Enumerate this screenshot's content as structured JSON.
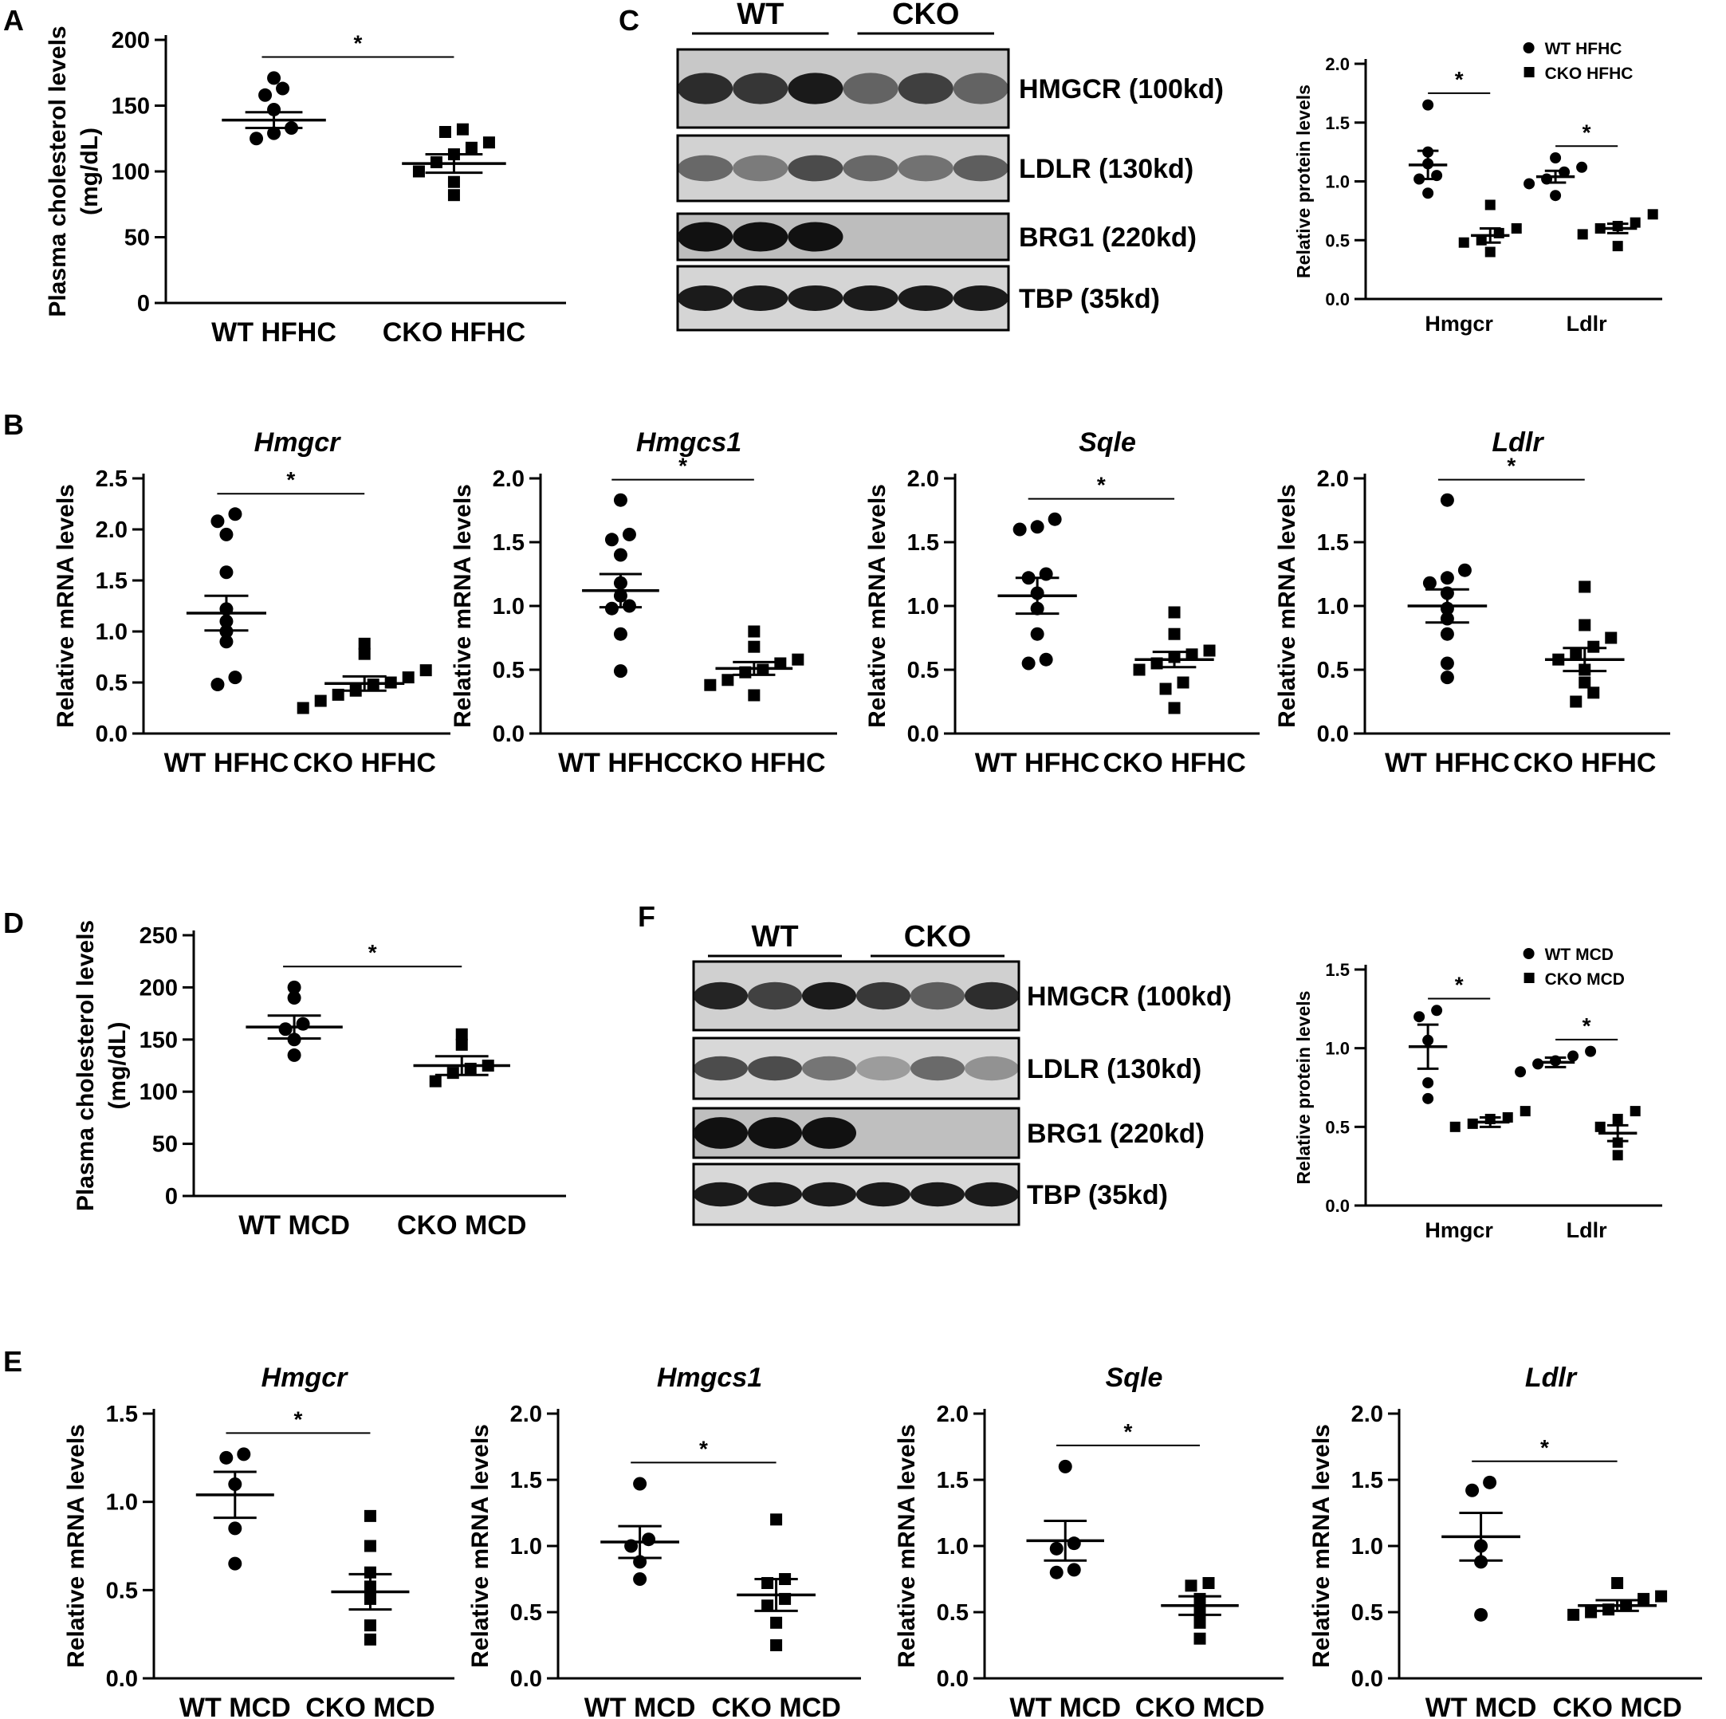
{
  "panels": {
    "A": "A",
    "B": "B",
    "C": "C",
    "D": "D",
    "E": "E",
    "F": "F"
  },
  "chart_data": [
    {
      "id": "A",
      "type": "scatter",
      "title": "",
      "ylabel_lines": [
        "Plasma cholesterol levels",
        "(mg/dL)"
      ],
      "categories": [
        "WT HFHC",
        "CKO HFHC"
      ],
      "ylim": [
        0,
        200
      ],
      "yticks": [
        0,
        50,
        100,
        150,
        200
      ],
      "decimals": 0,
      "series": [
        {
          "points": [
            125,
            129,
            133,
            147,
            158,
            163,
            171
          ],
          "mean": 139,
          "sem": 6,
          "marker": "circle"
        },
        {
          "points": [
            82,
            92,
            100,
            107,
            113,
            118,
            122,
            130,
            132
          ],
          "mean": 106,
          "sem": 7,
          "marker": "square"
        }
      ],
      "significance": "*"
    },
    {
      "id": "B1",
      "type": "scatter",
      "title": "Hmgcr",
      "ylabel_lines": [
        "Relative mRNA levels"
      ],
      "categories": [
        "WT HFHC",
        "CKO HFHC"
      ],
      "ylim": [
        0,
        2.5
      ],
      "yticks": [
        0,
        0.5,
        1.0,
        1.5,
        2.0,
        2.5
      ],
      "decimals": 1,
      "series": [
        {
          "points": [
            0.48,
            0.55,
            0.9,
            1.0,
            1.1,
            1.22,
            1.58,
            1.95,
            2.08,
            2.15
          ],
          "mean": 1.18,
          "sem": 0.17,
          "marker": "circle"
        },
        {
          "points": [
            0.25,
            0.32,
            0.38,
            0.42,
            0.48,
            0.5,
            0.55,
            0.62,
            0.78,
            0.88
          ],
          "mean": 0.49,
          "sem": 0.07,
          "marker": "square"
        }
      ],
      "significance": "*"
    },
    {
      "id": "B2",
      "type": "scatter",
      "title": "Hmgcs1",
      "ylabel_lines": [
        "Relative mRNA levels"
      ],
      "categories": [
        "WT HFHC",
        "CKO HFHC"
      ],
      "ylim": [
        0,
        2.0
      ],
      "yticks": [
        0,
        0.5,
        1.0,
        1.5,
        2.0
      ],
      "decimals": 1,
      "series": [
        {
          "points": [
            0.49,
            0.78,
            0.98,
            1.0,
            1.08,
            1.18,
            1.4,
            1.52,
            1.56,
            1.83
          ],
          "mean": 1.12,
          "sem": 0.13,
          "marker": "circle"
        },
        {
          "points": [
            0.3,
            0.38,
            0.42,
            0.48,
            0.5,
            0.55,
            0.58,
            0.68,
            0.8
          ],
          "mean": 0.51,
          "sem": 0.05,
          "marker": "square"
        }
      ],
      "significance": "*"
    },
    {
      "id": "B3",
      "type": "scatter",
      "title": "Sqle",
      "ylabel_lines": [
        "Relative mRNA levels"
      ],
      "categories": [
        "WT HFHC",
        "CKO HFHC"
      ],
      "ylim": [
        0,
        2.0
      ],
      "yticks": [
        0,
        0.5,
        1.0,
        1.5,
        2.0
      ],
      "decimals": 1,
      "series": [
        {
          "points": [
            0.55,
            0.58,
            0.78,
            0.98,
            1.1,
            1.22,
            1.25,
            1.6,
            1.62,
            1.68
          ],
          "mean": 1.08,
          "sem": 0.14,
          "marker": "circle"
        },
        {
          "points": [
            0.2,
            0.35,
            0.4,
            0.5,
            0.55,
            0.6,
            0.62,
            0.65,
            0.78,
            0.95
          ],
          "mean": 0.58,
          "sem": 0.06,
          "marker": "square"
        }
      ],
      "significance": "*"
    },
    {
      "id": "B4",
      "type": "scatter",
      "title": "Ldlr",
      "ylabel_lines": [
        "Relative mRNA levels"
      ],
      "categories": [
        "WT HFHC",
        "CKO HFHC"
      ],
      "ylim": [
        0,
        2.0
      ],
      "yticks": [
        0,
        0.5,
        1.0,
        1.5,
        2.0
      ],
      "decimals": 1,
      "series": [
        {
          "points": [
            0.44,
            0.55,
            0.78,
            0.9,
            0.98,
            1.1,
            1.18,
            1.22,
            1.28,
            1.83
          ],
          "mean": 1.0,
          "sem": 0.13,
          "marker": "circle"
        },
        {
          "points": [
            0.25,
            0.32,
            0.4,
            0.5,
            0.58,
            0.62,
            0.68,
            0.75,
            0.85,
            1.15
          ],
          "mean": 0.58,
          "sem": 0.09,
          "marker": "square"
        }
      ],
      "significance": "*"
    },
    {
      "id": "C",
      "type": "scatter",
      "title": "",
      "ylabel_lines": [
        "Relative protein levels"
      ],
      "categories": [
        "Hmgcr",
        "Ldlr"
      ],
      "ylim": [
        0,
        2.0
      ],
      "yticks": [
        0,
        0.5,
        1.0,
        1.5,
        2.0
      ],
      "decimals": 1,
      "legend": [
        "WT HFHC",
        "CKO HFHC"
      ],
      "legend_position": "top-right",
      "groups": [
        {
          "series": [
            {
              "points": [
                0.9,
                1.02,
                1.05,
                1.15,
                1.25,
                1.65
              ],
              "mean": 1.14,
              "sem": 0.12,
              "marker": "circle"
            },
            {
              "points": [
                0.4,
                0.48,
                0.5,
                0.56,
                0.6,
                0.8
              ],
              "mean": 0.54,
              "sem": 0.06,
              "marker": "square"
            }
          ]
        },
        {
          "series": [
            {
              "points": [
                0.88,
                0.98,
                1.02,
                1.08,
                1.12,
                1.2
              ],
              "mean": 1.04,
              "sem": 0.05,
              "marker": "circle"
            },
            {
              "points": [
                0.45,
                0.55,
                0.6,
                0.62,
                0.65,
                0.72
              ],
              "mean": 0.6,
              "sem": 0.04,
              "marker": "square"
            }
          ]
        }
      ],
      "significance": "*"
    },
    {
      "id": "D",
      "type": "scatter",
      "title": "",
      "ylabel_lines": [
        "Plasma cholesterol levels",
        "(mg/dL)"
      ],
      "categories": [
        "WT MCD",
        "CKO MCD"
      ],
      "ylim": [
        0,
        250
      ],
      "yticks": [
        0,
        50,
        100,
        150,
        200,
        250
      ],
      "decimals": 0,
      "series": [
        {
          "points": [
            135,
            150,
            160,
            165,
            190,
            200
          ],
          "mean": 162,
          "sem": 11,
          "marker": "circle"
        },
        {
          "points": [
            110,
            118,
            122,
            125,
            145,
            155
          ],
          "mean": 125,
          "sem": 9,
          "marker": "square"
        }
      ],
      "significance": "*"
    },
    {
      "id": "E1",
      "type": "scatter",
      "title": "Hmgcr",
      "ylabel_lines": [
        "Relative mRNA levels"
      ],
      "categories": [
        "WT MCD",
        "CKO MCD"
      ],
      "ylim": [
        0,
        1.5
      ],
      "yticks": [
        0,
        0.5,
        1.0,
        1.5
      ],
      "decimals": 1,
      "series": [
        {
          "points": [
            0.65,
            0.85,
            1.1,
            1.25,
            1.27
          ],
          "mean": 1.04,
          "sem": 0.13,
          "marker": "circle"
        },
        {
          "points": [
            0.22,
            0.3,
            0.45,
            0.52,
            0.6,
            0.75,
            0.92
          ],
          "mean": 0.49,
          "sem": 0.1,
          "marker": "square"
        }
      ],
      "significance": "*"
    },
    {
      "id": "E2",
      "type": "scatter",
      "title": "Hmgcs1",
      "ylabel_lines": [
        "Relative mRNA levels"
      ],
      "categories": [
        "WT MCD",
        "CKO MCD"
      ],
      "ylim": [
        0,
        2.0
      ],
      "yticks": [
        0,
        0.5,
        1.0,
        1.5,
        2.0
      ],
      "decimals": 1,
      "series": [
        {
          "points": [
            0.75,
            0.88,
            1.0,
            1.05,
            1.47
          ],
          "mean": 1.03,
          "sem": 0.12,
          "marker": "circle"
        },
        {
          "points": [
            0.25,
            0.42,
            0.55,
            0.6,
            0.72,
            0.75,
            1.2
          ],
          "mean": 0.63,
          "sem": 0.12,
          "marker": "square"
        }
      ],
      "significance": "*"
    },
    {
      "id": "E3",
      "type": "scatter",
      "title": "Sqle",
      "ylabel_lines": [
        "Relative mRNA levels"
      ],
      "categories": [
        "WT MCD",
        "CKO MCD"
      ],
      "ylim": [
        0,
        2.0
      ],
      "yticks": [
        0,
        0.5,
        1.0,
        1.5,
        2.0
      ],
      "decimals": 1,
      "series": [
        {
          "points": [
            0.8,
            0.82,
            0.98,
            1.02,
            1.6
          ],
          "mean": 1.04,
          "sem": 0.15,
          "marker": "circle"
        },
        {
          "points": [
            0.3,
            0.42,
            0.5,
            0.6,
            0.7,
            0.72
          ],
          "mean": 0.55,
          "sem": 0.07,
          "marker": "square"
        }
      ],
      "significance": "*"
    },
    {
      "id": "E4",
      "type": "scatter",
      "title": "Ldlr",
      "ylabel_lines": [
        "Relative mRNA levels"
      ],
      "categories": [
        "WT MCD",
        "CKO MCD"
      ],
      "ylim": [
        0,
        2.0
      ],
      "yticks": [
        0,
        0.5,
        1.0,
        1.5,
        2.0
      ],
      "decimals": 1,
      "series": [
        {
          "points": [
            0.48,
            0.88,
            1.0,
            1.42,
            1.48
          ],
          "mean": 1.07,
          "sem": 0.18,
          "marker": "circle"
        },
        {
          "points": [
            0.48,
            0.5,
            0.52,
            0.55,
            0.6,
            0.62,
            0.72
          ],
          "mean": 0.55,
          "sem": 0.04,
          "marker": "square"
        }
      ],
      "significance": "*"
    },
    {
      "id": "F",
      "type": "scatter",
      "title": "",
      "ylabel_lines": [
        "Relative protein levels"
      ],
      "categories": [
        "Hmgcr",
        "Ldlr"
      ],
      "ylim": [
        0,
        1.5
      ],
      "yticks": [
        0,
        0.5,
        1.0,
        1.5
      ],
      "decimals": 1,
      "legend": [
        "WT MCD",
        "CKO MCD"
      ],
      "legend_position": "top-right",
      "groups": [
        {
          "series": [
            {
              "points": [
                0.68,
                0.78,
                1.05,
                1.2,
                1.24
              ],
              "mean": 1.01,
              "sem": 0.14,
              "marker": "circle"
            },
            {
              "points": [
                0.5,
                0.52,
                0.55,
                0.56,
                0.6
              ],
              "mean": 0.53,
              "sem": 0.03,
              "marker": "square"
            }
          ]
        },
        {
          "series": [
            {
              "points": [
                0.85,
                0.9,
                0.92,
                0.95,
                0.98
              ],
              "mean": 0.91,
              "sem": 0.03,
              "marker": "circle"
            },
            {
              "points": [
                0.32,
                0.4,
                0.5,
                0.55,
                0.6
              ],
              "mean": 0.46,
              "sem": 0.05,
              "marker": "square"
            }
          ]
        }
      ],
      "significance": "*"
    }
  ],
  "blots": [
    {
      "id": "C",
      "lane_labels": [
        "WT",
        "CKO"
      ],
      "rows": [
        {
          "label": "HMGCR (100kd)",
          "intensity": [
            0.85,
            0.8,
            0.95,
            0.55,
            0.75,
            0.55
          ],
          "bg": "#c8c8c8"
        },
        {
          "label": "LDLR (130kd)",
          "intensity": [
            0.55,
            0.45,
            0.7,
            0.55,
            0.5,
            0.6
          ],
          "bg": "#d2d2d2"
        },
        {
          "label": "BRG1 (220kd)",
          "intensity": [
            1.0,
            1.0,
            1.0,
            0,
            0,
            0
          ],
          "bg": "#bdbdbd"
        },
        {
          "label": "TBP (35kd)",
          "intensity": [
            0.95,
            0.95,
            0.95,
            0.95,
            0.95,
            0.95
          ],
          "bg": "#d5d5d5"
        }
      ]
    },
    {
      "id": "F",
      "lane_labels": [
        "WT",
        "CKO"
      ],
      "rows": [
        {
          "label": "HMGCR (100kd)",
          "intensity": [
            0.9,
            0.75,
            0.95,
            0.8,
            0.6,
            0.85
          ],
          "bg": "#d0d0d0"
        },
        {
          "label": "LDLR (130kd)",
          "intensity": [
            0.7,
            0.7,
            0.5,
            0.3,
            0.55,
            0.35
          ],
          "bg": "#d8d8d8"
        },
        {
          "label": "BRG1 (220kd)",
          "intensity": [
            1.0,
            1.0,
            1.0,
            0,
            0,
            0
          ],
          "bg": "#bfbfbf"
        },
        {
          "label": "TBP (35kd)",
          "intensity": [
            0.95,
            0.95,
            0.95,
            0.95,
            0.95,
            0.95
          ],
          "bg": "#d8d8d8"
        }
      ]
    }
  ]
}
